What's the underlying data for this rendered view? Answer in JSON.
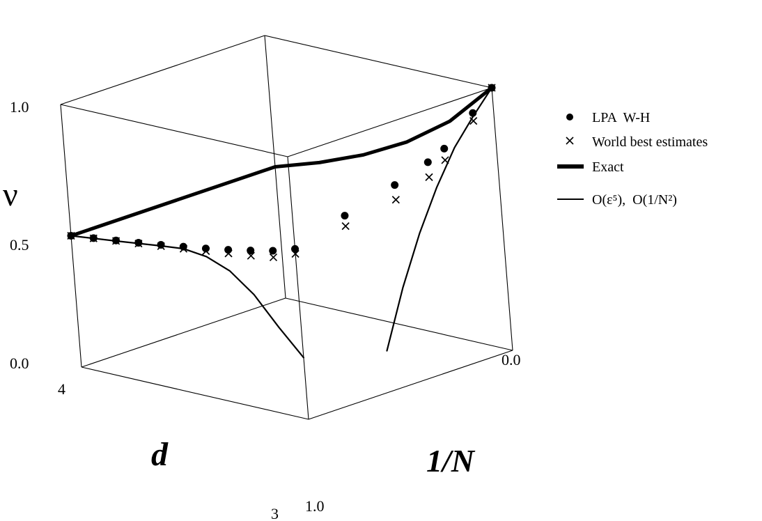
{
  "chart_data": {
    "type": "line",
    "axes": {
      "x": {
        "label": "d",
        "ticks": [
          "4",
          "3"
        ],
        "range": [
          3,
          4
        ]
      },
      "z": {
        "label": "1/N",
        "ticks": [
          "0.0",
          "1.0"
        ],
        "range": [
          0,
          1
        ]
      },
      "y": {
        "label": "ν",
        "ticks": [
          "0.0",
          "0.5",
          "1.0"
        ],
        "range": [
          0,
          1
        ]
      }
    },
    "legend": {
      "position": "top-right",
      "entries": [
        {
          "label": "LPA  W-H",
          "marker": "dot"
        },
        {
          "label": "World best estimates",
          "marker": "cross"
        },
        {
          "label": "Exact",
          "marker": "thick-line"
        },
        {
          "label": "O(ε⁵),  O(1/N²)",
          "marker": "thin-line"
        }
      ]
    },
    "series": [
      {
        "name": "LPA  W-H",
        "points": [
          {
            "d": 4.0,
            "invN": 1.0,
            "nu": 0.5
          },
          {
            "d": 3.9,
            "invN": 1.0,
            "nu": 0.511
          },
          {
            "d": 3.8,
            "invN": 1.0,
            "nu": 0.522
          },
          {
            "d": 3.7,
            "invN": 1.0,
            "nu": 0.533
          },
          {
            "d": 3.6,
            "invN": 1.0,
            "nu": 0.545
          },
          {
            "d": 3.5,
            "invN": 1.0,
            "nu": 0.558
          },
          {
            "d": 3.4,
            "invN": 1.0,
            "nu": 0.571
          },
          {
            "d": 3.3,
            "invN": 1.0,
            "nu": 0.586
          },
          {
            "d": 3.2,
            "invN": 1.0,
            "nu": 0.603
          },
          {
            "d": 3.1,
            "invN": 1.0,
            "nu": 0.622
          },
          {
            "d": 3.0,
            "invN": 1.0,
            "nu": 0.649
          },
          {
            "d": 3.0,
            "invN": 0.75,
            "nu": 0.71
          },
          {
            "d": 3.0,
            "invN": 0.5,
            "nu": 0.761
          },
          {
            "d": 3.0,
            "invN": 0.333,
            "nu": 0.804
          },
          {
            "d": 3.0,
            "invN": 0.25,
            "nu": 0.834
          },
          {
            "d": 3.0,
            "invN": 0.1,
            "nu": 0.93
          },
          {
            "d": 3.0,
            "invN": 0.0,
            "nu": 1.0
          }
        ]
      },
      {
        "name": "World best estimates",
        "points": [
          {
            "d": 4.0,
            "invN": 1.0,
            "nu": 0.5
          },
          {
            "d": 3.9,
            "invN": 1.0,
            "nu": 0.51
          },
          {
            "d": 3.8,
            "invN": 1.0,
            "nu": 0.52
          },
          {
            "d": 3.7,
            "invN": 1.0,
            "nu": 0.53
          },
          {
            "d": 3.6,
            "invN": 1.0,
            "nu": 0.54
          },
          {
            "d": 3.5,
            "invN": 1.0,
            "nu": 0.55
          },
          {
            "d": 3.4,
            "invN": 1.0,
            "nu": 0.561
          },
          {
            "d": 3.3,
            "invN": 1.0,
            "nu": 0.572
          },
          {
            "d": 3.2,
            "invN": 1.0,
            "nu": 0.583
          },
          {
            "d": 3.1,
            "invN": 1.0,
            "nu": 0.597
          },
          {
            "d": 3.0,
            "invN": 1.0,
            "nu": 0.63
          },
          {
            "d": 3.0,
            "invN": 0.75,
            "nu": 0.67
          },
          {
            "d": 3.0,
            "invN": 0.5,
            "nu": 0.705
          },
          {
            "d": 3.0,
            "invN": 0.333,
            "nu": 0.747
          },
          {
            "d": 3.0,
            "invN": 0.25,
            "nu": 0.79
          },
          {
            "d": 3.0,
            "invN": 0.1,
            "nu": 0.9
          },
          {
            "d": 3.0,
            "invN": 0.0,
            "nu": 1.0
          }
        ]
      },
      {
        "name": "Exact",
        "segments": [
          {
            "points": [
              {
                "d": 4.0,
                "invN": 1.0,
                "nu": 0.5
              },
              {
                "d": 4.0,
                "invN": 0.0,
                "nu": 0.5
              }
            ]
          },
          {
            "points": [
              {
                "d": 4.0,
                "invN": 0.0,
                "nu": 0.5
              },
              {
                "d": 3.8,
                "invN": 0.0,
                "nu": 0.556
              },
              {
                "d": 3.6,
                "invN": 0.0,
                "nu": 0.625
              },
              {
                "d": 3.4,
                "invN": 0.0,
                "nu": 0.714
              },
              {
                "d": 3.2,
                "invN": 0.0,
                "nu": 0.833
              },
              {
                "d": 3.0,
                "invN": 0.0,
                "nu": 1.0
              }
            ]
          }
        ]
      },
      {
        "name": "O(ε⁵),  O(1/N²)",
        "segments": [
          {
            "points": [
              {
                "d": 4.0,
                "invN": 1.0,
                "nu": 0.5
              },
              {
                "d": 3.8,
                "invN": 1.0,
                "nu": 0.52
              },
              {
                "d": 3.6,
                "invN": 1.0,
                "nu": 0.541
              },
              {
                "d": 3.5,
                "invN": 1.0,
                "nu": 0.55
              },
              {
                "d": 3.4,
                "invN": 1.0,
                "nu": 0.54
              },
              {
                "d": 3.3,
                "invN": 1.0,
                "nu": 0.505
              },
              {
                "d": 3.2,
                "invN": 1.0,
                "nu": 0.435
              },
              {
                "d": 3.1,
                "invN": 1.0,
                "nu": 0.33
              },
              {
                "d": 3.0,
                "invN": 1.0,
                "nu": 0.235
              }
            ]
          },
          {
            "points": [
              {
                "d": 3.0,
                "invN": 0.0,
                "nu": 1.0
              },
              {
                "d": 3.0,
                "invN": 0.1,
                "nu": 0.917
              },
              {
                "d": 3.0,
                "invN": 0.2,
                "nu": 0.825
              },
              {
                "d": 3.0,
                "invN": 0.3,
                "nu": 0.7
              },
              {
                "d": 3.0,
                "invN": 0.4,
                "nu": 0.55
              },
              {
                "d": 3.0,
                "invN": 0.5,
                "nu": 0.37
              },
              {
                "d": 3.0,
                "invN": 0.6,
                "nu": 0.156
              }
            ]
          }
        ]
      }
    ]
  }
}
